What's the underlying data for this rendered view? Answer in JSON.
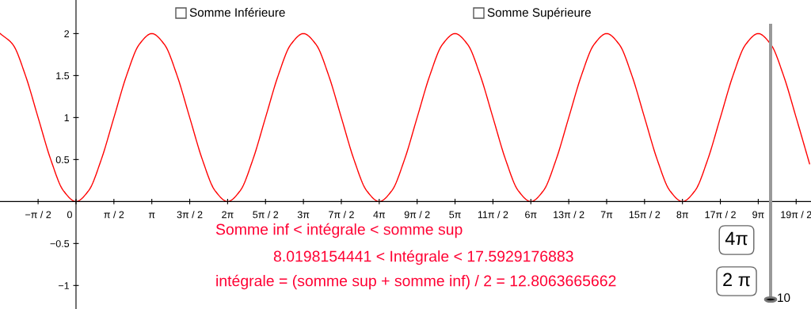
{
  "chart_data": {
    "type": "line",
    "xlim": [
      -3.15,
      30.46
    ],
    "ylim": [
      -1.28,
      2.4
    ],
    "x": [
      -3.142,
      -2.618,
      -2.094,
      -1.571,
      -1.047,
      -0.524,
      0,
      0.524,
      1.047,
      1.571,
      2.094,
      2.618,
      3.142,
      3.665,
      4.189,
      4.712,
      5.236,
      5.76,
      6.283,
      6.807,
      7.33,
      7.854,
      8.378,
      8.901,
      9.425,
      9.948,
      10.472,
      10.996,
      11.519,
      12.043,
      12.566,
      13.09,
      13.614,
      14.137,
      14.661,
      15.184,
      15.708,
      16.232,
      16.755,
      17.279,
      17.802,
      18.326,
      18.85,
      19.373,
      19.897,
      20.42,
      20.944,
      21.468,
      21.991,
      22.515,
      23.038,
      23.562,
      24.086,
      24.609,
      25.133,
      25.656,
      26.18,
      26.704,
      27.227,
      27.751,
      28.274,
      28.798,
      29.322,
      29.845,
      30.4
    ],
    "series": [
      {
        "color": "#ff0000",
        "values": [
          2,
          1.87,
          1.5,
          1,
          0.5,
          0.13,
          0,
          0.13,
          0.5,
          1,
          1.5,
          1.87,
          2,
          1.87,
          1.5,
          1,
          0.5,
          0.13,
          0,
          0.13,
          0.5,
          1,
          1.5,
          1.87,
          2,
          1.87,
          1.5,
          1,
          0.5,
          0.13,
          0,
          0.13,
          0.5,
          1,
          1.5,
          1.87,
          2,
          1.87,
          1.5,
          1,
          0.5,
          0.13,
          0,
          0.13,
          0.5,
          1,
          1.5,
          1.87,
          2,
          1.87,
          1.5,
          1,
          0.5,
          0.13,
          0,
          0.13,
          0.5,
          1,
          1.5,
          1.87,
          2,
          1.87,
          1.5,
          1,
          0.45
        ]
      }
    ],
    "xticks": [
      {
        "value": -1.5708,
        "label": "−π / 2"
      },
      {
        "value": 0,
        "label": "0"
      },
      {
        "value": 1.5708,
        "label": "π / 2"
      },
      {
        "value": 3.1416,
        "label": "π"
      },
      {
        "value": 4.7124,
        "label": "3π / 2"
      },
      {
        "value": 6.2832,
        "label": "2π"
      },
      {
        "value": 7.854,
        "label": "5π / 2"
      },
      {
        "value": 9.4248,
        "label": "3π"
      },
      {
        "value": 10.9956,
        "label": "7π / 2"
      },
      {
        "value": 12.5664,
        "label": "4π"
      },
      {
        "value": 14.1372,
        "label": "9π / 2"
      },
      {
        "value": 15.708,
        "label": "5π"
      },
      {
        "value": 17.2788,
        "label": "11π / 2"
      },
      {
        "value": 18.8496,
        "label": "6π"
      },
      {
        "value": 20.4204,
        "label": "13π / 2"
      },
      {
        "value": 21.9911,
        "label": "7π"
      },
      {
        "value": 23.5619,
        "label": "15π / 2"
      },
      {
        "value": 25.1327,
        "label": "8π"
      },
      {
        "value": 26.7035,
        "label": "17π / 2"
      },
      {
        "value": 28.2743,
        "label": "9π"
      },
      {
        "value": 29.8451,
        "label": "19π / 2"
      }
    ],
    "yticks": [
      {
        "value": -1,
        "label": "−1"
      },
      {
        "value": -0.5,
        "label": "−0.5"
      },
      0.5,
      1,
      1.5,
      2
    ],
    "grid": false,
    "legend": false,
    "marker": "none",
    "line_style": "solid",
    "annotations": [
      "Somme Inférieure",
      "Somme Supérieure",
      "Somme inf < intégrale < somme sup",
      "8.0198154441 < Intégrale < 17.5929176883",
      "intégrale = (somme sup + somme inf) / 2 = 12.8063665662",
      "4π",
      "2 π",
      "10"
    ]
  }
}
